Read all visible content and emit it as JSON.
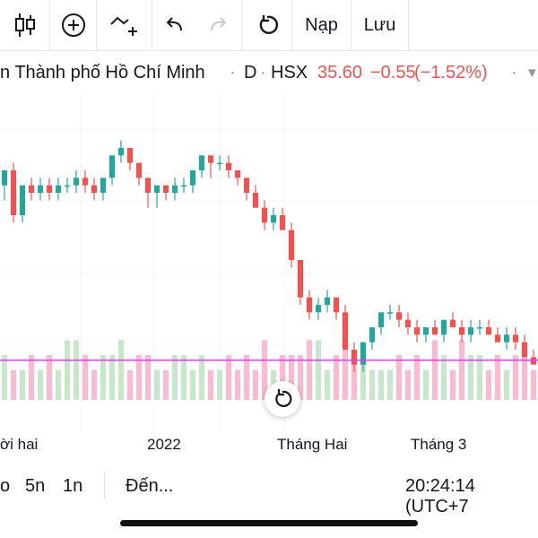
{
  "toolbar": {
    "reload_label": "Nạp",
    "save_label": "Lưu"
  },
  "symbol": {
    "name": "n Thành phố Hồ Chí Minh",
    "sep": "·",
    "interval": "D",
    "exchange": "HSX",
    "price": "35.60",
    "change": "−0.55",
    "change_pct": "(−1.52%)"
  },
  "axis": {
    "labels": [
      "ời hai",
      "2022",
      "Tháng Hai",
      "Tháng 3"
    ]
  },
  "bottom": {
    "ranges": [
      "o",
      "5n",
      "1n"
    ],
    "goto_label": "Đến...",
    "clock": "20:24:14 (UTC+7"
  },
  "colors": {
    "up": "#26a69a",
    "down": "#ef5350",
    "up_vol": "#c8e6c9",
    "down_vol": "#f8bbd0",
    "price_line": "#e040fb"
  },
  "chart_data": {
    "type": "candlestick",
    "ohlc": [
      [
        40,
        42,
        38,
        42
      ],
      [
        42,
        43,
        35,
        36
      ],
      [
        36,
        40,
        35,
        40
      ],
      [
        40,
        41,
        38,
        39
      ],
      [
        39,
        41,
        38,
        40
      ],
      [
        40,
        41,
        38,
        39
      ],
      [
        39,
        41,
        38,
        40
      ],
      [
        40,
        41,
        39,
        40
      ],
      [
        40,
        42,
        39,
        41
      ],
      [
        41,
        42,
        39,
        40
      ],
      [
        40,
        41,
        38,
        39
      ],
      [
        39,
        41,
        38,
        41
      ],
      [
        41,
        44,
        40,
        44
      ],
      [
        44,
        46,
        43,
        45
      ],
      [
        45,
        45,
        42,
        43
      ],
      [
        43,
        43,
        40,
        41
      ],
      [
        41,
        41,
        37,
        39
      ],
      [
        39,
        40,
        37,
        40
      ],
      [
        40,
        40,
        38,
        39
      ],
      [
        39,
        41,
        38,
        40
      ],
      [
        40,
        41,
        39,
        40
      ],
      [
        40,
        42,
        39,
        42
      ],
      [
        42,
        44,
        41,
        44
      ],
      [
        44,
        44,
        41,
        43
      ],
      [
        43,
        44,
        42,
        43
      ],
      [
        43,
        44,
        41,
        42
      ],
      [
        42,
        42,
        40,
        41
      ],
      [
        41,
        41,
        38,
        39
      ],
      [
        39,
        40,
        37,
        37
      ],
      [
        37,
        38,
        34,
        35
      ],
      [
        35,
        37,
        34,
        36
      ],
      [
        36,
        37,
        34,
        34
      ],
      [
        34,
        35,
        29,
        30
      ],
      [
        30,
        30,
        24,
        25
      ],
      [
        25,
        26,
        22,
        23
      ],
      [
        23,
        25,
        22,
        24
      ],
      [
        24,
        26,
        23,
        25
      ],
      [
        25,
        25,
        22,
        23
      ],
      [
        23,
        24,
        18,
        18
      ],
      [
        18,
        19,
        15,
        16
      ],
      [
        16,
        19,
        15,
        19
      ],
      [
        19,
        21,
        18,
        21
      ],
      [
        21,
        23,
        20,
        23
      ],
      [
        23,
        24,
        22,
        23
      ],
      [
        23,
        24,
        21,
        22
      ],
      [
        22,
        23,
        20,
        21
      ],
      [
        21,
        22,
        19,
        20
      ],
      [
        20,
        21,
        19,
        21
      ],
      [
        21,
        22,
        20,
        20
      ],
      [
        20,
        22,
        19,
        22
      ],
      [
        22,
        23,
        21,
        21
      ],
      [
        21,
        22,
        19,
        20
      ],
      [
        20,
        22,
        19,
        21
      ],
      [
        21,
        22,
        20,
        21
      ],
      [
        21,
        22,
        20,
        20
      ],
      [
        20,
        21,
        19,
        19
      ],
      [
        19,
        21,
        18,
        20
      ],
      [
        20,
        21,
        18,
        19
      ],
      [
        19,
        20,
        17,
        17
      ],
      [
        17,
        18,
        16,
        16
      ]
    ],
    "volumes": [
      3,
      2,
      2,
      3,
      2,
      3,
      2,
      4,
      4,
      3,
      2,
      3,
      3,
      4,
      2,
      3,
      3,
      2,
      2,
      3,
      3,
      2,
      3,
      2,
      2,
      3,
      2,
      3,
      2,
      4,
      2,
      3,
      3,
      3,
      4,
      4,
      2,
      3,
      4,
      3,
      3,
      2,
      2,
      2,
      3,
      2,
      3,
      2,
      4,
      3,
      2,
      4,
      3,
      3,
      2,
      3,
      2,
      3,
      3,
      2
    ],
    "price_line": 16.6
  }
}
